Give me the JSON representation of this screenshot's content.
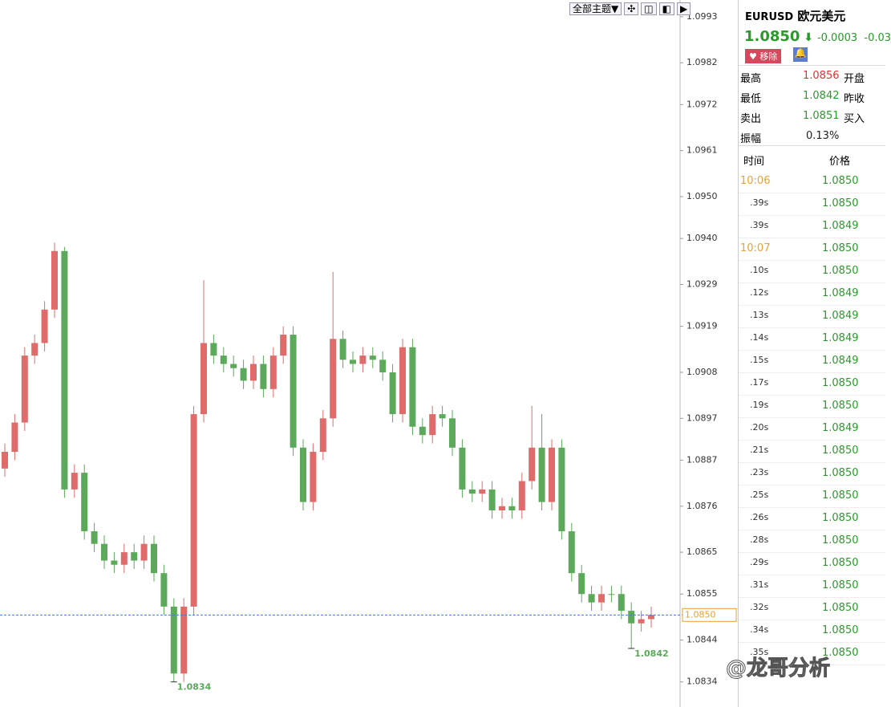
{
  "toolbar": {
    "theme_button": "全部主题▼"
  },
  "chart_data": {
    "type": "candlestick",
    "ylim": [
      1.0828,
      1.0997
    ],
    "yticks": [
      1.0993,
      1.0982,
      1.0972,
      1.0961,
      {
        "value": 1.095,
        "label": "1.0950"
      },
      {
        "value": 1.094,
        "label": "1.0940"
      },
      1.0929,
      1.0919,
      1.0908,
      1.0897,
      1.0887,
      1.0876,
      1.0865,
      1.0855,
      1.0844,
      1.0834
    ],
    "up_color": "#e06b6b",
    "down_color": "#5ca95c",
    "open": [
      1.0885,
      1.0889,
      1.0896,
      1.0912,
      1.0915,
      1.0923,
      1.0937,
      1.088,
      1.0884,
      1.087,
      1.0867,
      1.0863,
      1.0862,
      1.0865,
      1.0863,
      1.0867,
      1.086,
      1.0852,
      1.0836,
      1.0852,
      1.0898,
      1.0915,
      1.0912,
      1.091,
      1.0909,
      1.0906,
      1.091,
      1.0904,
      1.0912,
      1.0917,
      1.089,
      1.0877,
      1.0889,
      1.0897,
      1.0916,
      1.0911,
      1.091,
      1.0912,
      1.0911,
      1.0908,
      1.0898,
      1.0914,
      1.0895,
      1.0893,
      1.0898,
      1.0897,
      1.089,
      1.088,
      1.0879,
      1.088,
      1.0875,
      1.0876,
      1.0875,
      1.0882,
      1.089,
      1.0877,
      1.089,
      1.087,
      1.086,
      1.0855,
      1.0853,
      1.0855,
      1.0855,
      1.0851,
      1.0848,
      1.0849
    ],
    "high": [
      1.0891,
      1.0898,
      1.0914,
      1.0917,
      1.0925,
      1.0939,
      1.0938,
      1.0886,
      1.0886,
      1.0872,
      1.0869,
      1.0865,
      1.0867,
      1.0867,
      1.0869,
      1.0869,
      1.0862,
      1.0854,
      1.0854,
      1.09,
      1.093,
      1.0917,
      1.0914,
      1.0912,
      1.0911,
      1.0912,
      1.0912,
      1.0914,
      1.0919,
      1.0919,
      1.0892,
      1.0891,
      1.0899,
      1.0932,
      1.0918,
      1.0913,
      1.0914,
      1.0914,
      1.0913,
      1.091,
      1.0916,
      1.0916,
      1.0897,
      1.09,
      1.09,
      1.0899,
      1.0892,
      1.0882,
      1.0882,
      1.0882,
      1.0878,
      1.0878,
      1.0884,
      1.09,
      1.0898,
      1.0892,
      1.0892,
      1.0872,
      1.0862,
      1.0857,
      1.0857,
      1.0857,
      1.0857,
      1.0853,
      1.0851,
      1.0852
    ],
    "low": [
      1.0883,
      1.0887,
      1.0894,
      1.091,
      1.0913,
      1.0921,
      1.0878,
      1.0878,
      1.0868,
      1.0865,
      1.0861,
      1.086,
      1.086,
      1.0861,
      1.0861,
      1.0858,
      1.085,
      1.0834,
      1.0834,
      1.085,
      1.0896,
      1.091,
      1.0908,
      1.0907,
      1.0904,
      1.0904,
      1.0902,
      1.0902,
      1.091,
      1.0888,
      1.0875,
      1.0875,
      1.0887,
      1.0895,
      1.0909,
      1.0908,
      1.0908,
      1.0909,
      1.0906,
      1.0896,
      1.0896,
      1.0893,
      1.0891,
      1.0891,
      1.0895,
      1.0888,
      1.0878,
      1.0877,
      1.0877,
      1.0873,
      1.0873,
      1.0873,
      1.0873,
      1.088,
      1.0875,
      1.0875,
      1.0868,
      1.0858,
      1.0853,
      1.0851,
      1.0851,
      1.0853,
      1.0849,
      1.0842,
      1.0846,
      1.0847
    ],
    "close": [
      1.0889,
      1.0896,
      1.0912,
      1.0915,
      1.0923,
      1.0937,
      1.088,
      1.0884,
      1.087,
      1.0867,
      1.0863,
      1.0862,
      1.0865,
      1.0863,
      1.0867,
      1.086,
      1.0852,
      1.0836,
      1.0852,
      1.0898,
      1.0915,
      1.0912,
      1.091,
      1.0909,
      1.0906,
      1.091,
      1.0904,
      1.0912,
      1.0917,
      1.089,
      1.0877,
      1.0889,
      1.0897,
      1.0916,
      1.0911,
      1.091,
      1.0912,
      1.0911,
      1.0908,
      1.0898,
      1.0914,
      1.0895,
      1.0893,
      1.0898,
      1.0897,
      1.089,
      1.088,
      1.0879,
      1.088,
      1.0875,
      1.0876,
      1.0875,
      1.0882,
      1.089,
      1.0877,
      1.089,
      1.087,
      1.086,
      1.0855,
      1.0853,
      1.0855,
      1.0855,
      1.0851,
      1.0848,
      1.0849,
      1.085
    ],
    "last_price": {
      "value": 1.085,
      "label": "1.0850"
    },
    "annotations": [
      {
        "value": 1.0834,
        "label": "1.0834"
      },
      {
        "value": 1.0842,
        "label": "1.0842"
      }
    ]
  },
  "panel": {
    "symbol": "EURUSD",
    "name": "欧元美元",
    "price": "1.0850",
    "change": "-0.0003",
    "change_pct": "-0.03",
    "remove": "移除",
    "stats": [
      [
        "最高",
        "1.0856",
        "开盘"
      ],
      [
        "最低",
        "1.0842",
        "昨收"
      ],
      [
        "卖出",
        "1.0851",
        "买入"
      ],
      [
        "振幅",
        "0.13%",
        ""
      ]
    ],
    "ticks_header": [
      "时间",
      "价格"
    ],
    "ticks": [
      [
        "10:06",
        "1.0850"
      ],
      [
        ".39s",
        "1.0850"
      ],
      [
        ".39s",
        "1.0849"
      ],
      [
        "10:07",
        "1.0850"
      ],
      [
        ".10s",
        "1.0850"
      ],
      [
        ".12s",
        "1.0849"
      ],
      [
        ".13s",
        "1.0849"
      ],
      [
        ".14s",
        "1.0849"
      ],
      [
        ".15s",
        "1.0849"
      ],
      [
        ".17s",
        "1.0850"
      ],
      [
        ".19s",
        "1.0850"
      ],
      [
        ".20s",
        "1.0849"
      ],
      [
        ".21s",
        "1.0850"
      ],
      [
        ".23s",
        "1.0850"
      ],
      [
        ".25s",
        "1.0850"
      ],
      [
        ".26s",
        "1.0850"
      ],
      [
        ".28s",
        "1.0850"
      ],
      [
        ".29s",
        "1.0850"
      ],
      [
        ".31s",
        "1.0850"
      ],
      [
        ".32s",
        "1.0850"
      ],
      [
        ".34s",
        "1.0850"
      ],
      [
        ".35s",
        "1.0850"
      ]
    ]
  },
  "watermark": "@龙哥分析"
}
